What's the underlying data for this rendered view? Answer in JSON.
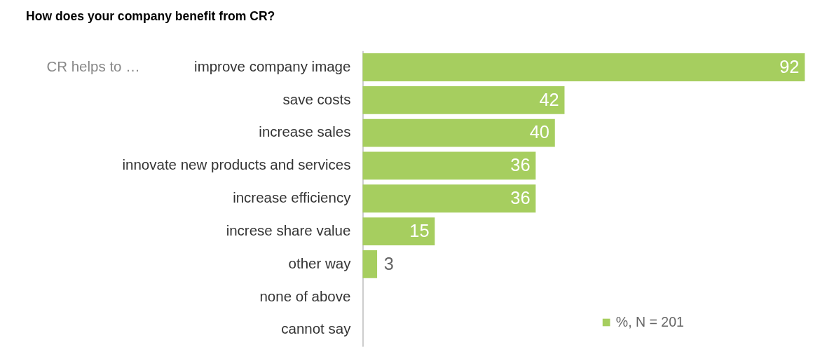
{
  "chart_data": {
    "type": "bar",
    "orientation": "horizontal",
    "title": "How does your company benefit from CR?",
    "categories": [
      "improve company image",
      "save costs ",
      "increase sales",
      "innovate new products and services",
      "increase efficiency",
      "increse share value ",
      "other way",
      "none of above",
      "cannot say"
    ],
    "series": [
      {
        "name": "%, N = 201",
        "color": "#a6ce5f",
        "values": [
          92,
          42,
          40,
          36,
          36,
          15,
          3,
          null,
          null
        ]
      }
    ],
    "data_labels": true,
    "legend": "bottom right",
    "grid": false,
    "tick_labels": "y",
    "annotations": [
      "CR helps to …"
    ]
  }
}
